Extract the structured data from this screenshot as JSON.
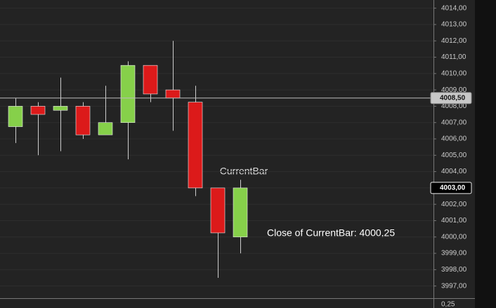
{
  "chart_data": {
    "type": "candlestick",
    "open": [
      4006.75,
      4008.0,
      4007.75,
      4008.0,
      4006.25,
      4007.0,
      4010.5,
      4009.0,
      4008.25,
      4003.0,
      4000.0
    ],
    "high": [
      4008.5,
      4008.25,
      4009.75,
      4008.25,
      4009.25,
      4010.75,
      4010.5,
      4012.0,
      4009.25,
      4003.0,
      4003.5
    ],
    "low": [
      4005.75,
      4005.0,
      4005.25,
      4006.0,
      4006.25,
      4004.75,
      4008.25,
      4006.5,
      4002.5,
      3997.5,
      3999.0
    ],
    "close": [
      4008.0,
      4007.5,
      4008.0,
      4006.25,
      4007.0,
      4010.5,
      4008.75,
      4008.5,
      4003.0,
      4000.25,
      4003.0
    ],
    "up_color": "#86d04a",
    "down_color": "#dc1a1a",
    "ylim": [
      3996.5,
      4014.5
    ],
    "yticks": [
      {
        "value": 3997,
        "label": "3997,00"
      },
      {
        "value": 3998,
        "label": "3998,00"
      },
      {
        "value": 3999,
        "label": "3999,00"
      },
      {
        "value": 4000,
        "label": "4000,00"
      },
      {
        "value": 4001,
        "label": "4001,00"
      },
      {
        "value": 4002,
        "label": "4002,00"
      },
      {
        "value": 4003,
        "label": "4003,00"
      },
      {
        "value": 4004,
        "label": "4004,00"
      },
      {
        "value": 4005,
        "label": "4005,00"
      },
      {
        "value": 4006,
        "label": "4006,00"
      },
      {
        "value": 4007,
        "label": "4007,00"
      },
      {
        "value": 4008,
        "label": "4008,00"
      },
      {
        "value": 4009,
        "label": "4009,00"
      },
      {
        "value": 4010,
        "label": "4010,00"
      },
      {
        "value": 4011,
        "label": "4011,00"
      },
      {
        "value": 4012,
        "label": "4012,00"
      },
      {
        "value": 4013,
        "label": "4013,00"
      },
      {
        "value": 4014,
        "label": "4014,00"
      }
    ],
    "grid": true,
    "price_markers": [
      {
        "value": 4008.5,
        "label": "4008,50"
      },
      {
        "value": 4003,
        "label": "4003,00"
      }
    ],
    "annotations": [
      "CurrentBar",
      "Close of CurrentBar: 4000,25"
    ],
    "lower_panel_tick": "0,25"
  }
}
